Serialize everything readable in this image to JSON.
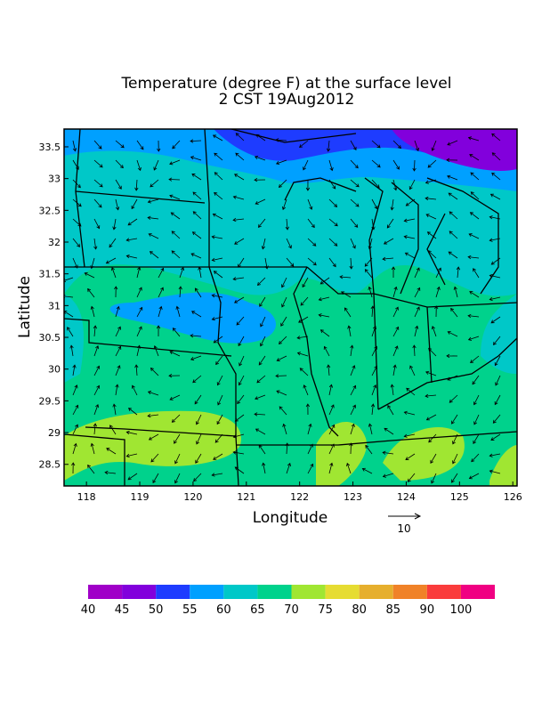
{
  "title": [
    "Temperature (degree F) at the surface level",
    "2 CST 19Aug2012"
  ],
  "map": {
    "xlabel": "Longitude",
    "ylabel": "Latitude",
    "xlim": [
      117.58,
      126.08
    ],
    "ylim": [
      28.16,
      33.78
    ],
    "xticks": [
      118,
      119,
      120,
      121,
      122,
      123,
      124,
      125,
      126
    ],
    "yticks": [
      28.5,
      29,
      29.5,
      30,
      30.5,
      31,
      31.5,
      32,
      32.5,
      33,
      33.5
    ],
    "vector_reference": 10
  },
  "colorbar": {
    "levels": [
      40,
      45,
      50,
      55,
      60,
      65,
      70,
      75,
      80,
      85,
      90,
      100
    ],
    "colors": [
      "#a000c8",
      "#8200dc",
      "#1e3cff",
      "#00a0ff",
      "#00c8c8",
      "#00d28c",
      "#a0e632",
      "#e6dc32",
      "#e6af2d",
      "#f08228",
      "#fa3c3c",
      "#f00082"
    ]
  }
}
